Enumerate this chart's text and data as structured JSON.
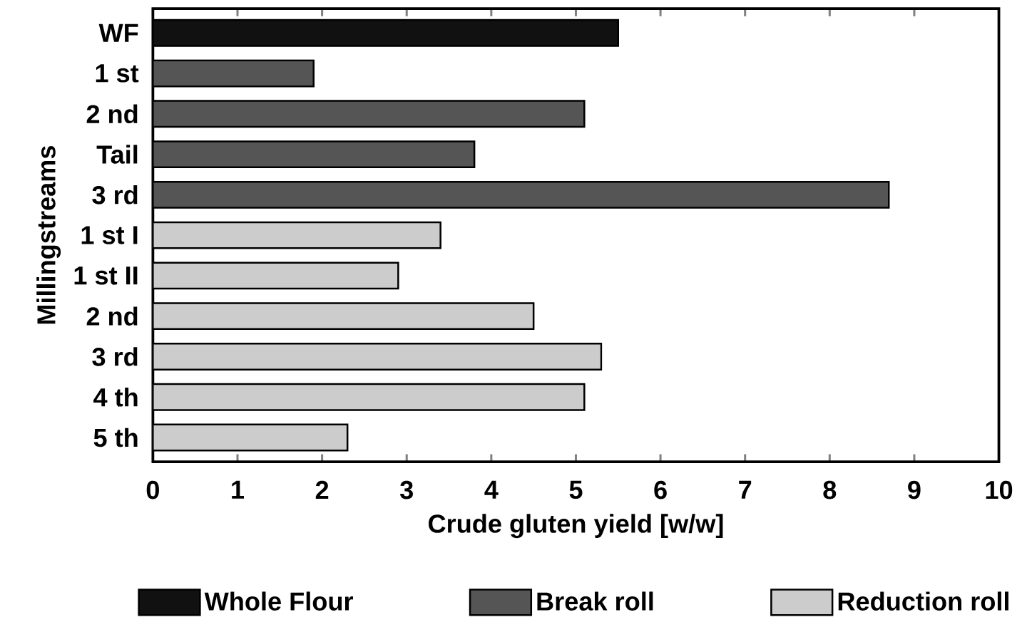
{
  "chart_data": {
    "type": "bar",
    "orientation": "horizontal",
    "xlabel": "Crude gluten yield [w/w]",
    "ylabel": "Millingstreams",
    "categories": [
      "WF",
      "1 st",
      "2 nd",
      "Tail",
      "3 rd",
      "1 st I",
      "1 st II",
      "2 nd",
      "3 rd",
      "4 th",
      "5 th"
    ],
    "series": [
      {
        "name": "Whole Flour",
        "color": "#111111",
        "values": [
          5.5,
          null,
          null,
          null,
          null,
          null,
          null,
          null,
          null,
          null,
          null
        ]
      },
      {
        "name": "Break roll",
        "color": "#555555",
        "values": [
          null,
          1.9,
          5.1,
          3.8,
          8.7,
          null,
          null,
          null,
          null,
          null,
          null
        ]
      },
      {
        "name": "Reduction roll",
        "color": "#cccccc",
        "values": [
          null,
          null,
          null,
          null,
          null,
          3.4,
          2.9,
          4.5,
          5.3,
          5.1,
          2.3
        ]
      }
    ],
    "xlim": [
      0,
      10
    ],
    "xticks": [
      0,
      1,
      2,
      3,
      4,
      5,
      6,
      7,
      8,
      9,
      10
    ],
    "grid": false,
    "legend": "bottom"
  }
}
